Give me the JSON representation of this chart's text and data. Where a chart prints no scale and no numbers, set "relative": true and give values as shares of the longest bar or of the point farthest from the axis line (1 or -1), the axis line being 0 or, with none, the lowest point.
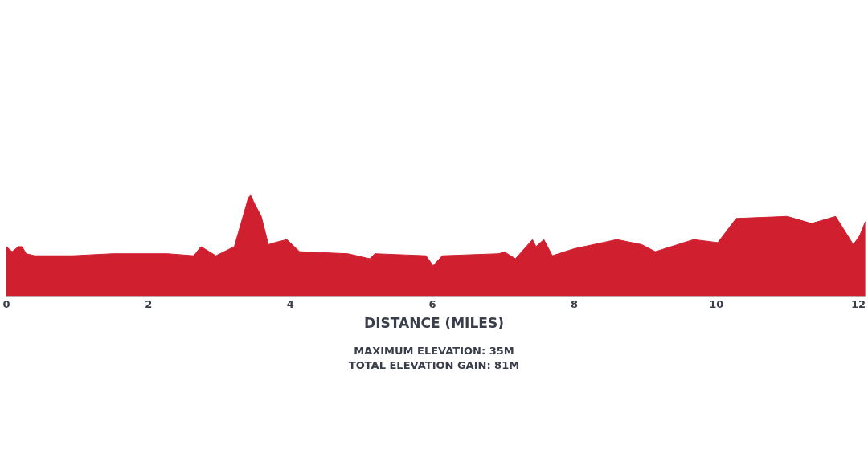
{
  "chart_data": {
    "type": "area",
    "relative": true,
    "xlabel": "DISTANCE (MILES)",
    "tick_labels": "x",
    "annotations": [
      "MAXIMUM ELEVATION: 35M",
      "TOTAL ELEVATION GAIN: 81M"
    ],
    "xlim": [
      0,
      12.1
    ],
    "xticks": [
      0,
      2,
      4,
      6,
      8,
      10,
      12
    ],
    "x": [
      0,
      0.08,
      0.17,
      0.22,
      0.28,
      0.4,
      0.93,
      1.5,
      2.27,
      2.64,
      2.74,
      2.95,
      3.21,
      3.41,
      3.44,
      3.5,
      3.59,
      3.69,
      3.78,
      3.95,
      4.13,
      4.81,
      5.12,
      5.19,
      5.91,
      6.01,
      6.14,
      6.94,
      7.01,
      7.17,
      7.41,
      7.46,
      7.57,
      7.69,
      8.0,
      8.6,
      8.95,
      9.14,
      9.68,
      10.02,
      10.28,
      11.0,
      11.34,
      11.68,
      11.93,
      12.02,
      12.1
    ],
    "series": [
      {
        "color": "#d02030",
        "values": [
          0.49,
          0.44,
          0.49,
          0.49,
          0.42,
          0.4,
          0.4,
          0.42,
          0.42,
          0.4,
          0.49,
          0.4,
          0.49,
          0.98,
          1,
          0.91,
          0.79,
          0.51,
          0.53,
          0.56,
          0.44,
          0.42,
          0.37,
          0.42,
          0.4,
          0.3,
          0.4,
          0.42,
          0.44,
          0.37,
          0.56,
          0.49,
          0.56,
          0.4,
          0.47,
          0.56,
          0.51,
          0.44,
          0.56,
          0.53,
          0.77,
          0.79,
          0.72,
          0.79,
          0.51,
          0.6,
          0.74
        ]
      }
    ]
  }
}
